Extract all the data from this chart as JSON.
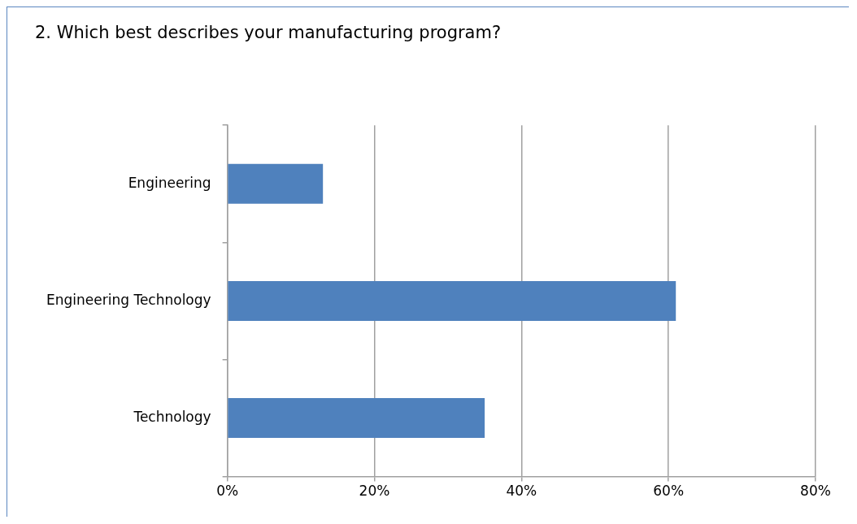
{
  "chart_data": {
    "type": "bar",
    "orientation": "horizontal",
    "title": "2. Which best describes your manufacturing program?",
    "categories": [
      "Engineering",
      "Engineering Technology",
      "Technology"
    ],
    "values": [
      13,
      61,
      35
    ],
    "color": "#4f81bd",
    "xlim": [
      0,
      80
    ],
    "xticks": [
      {
        "value": 0,
        "label": "0%"
      },
      {
        "value": 20,
        "label": "20%"
      },
      {
        "value": 40,
        "label": "40%"
      },
      {
        "value": 60,
        "label": "60%"
      },
      {
        "value": 80,
        "label": "80%"
      }
    ],
    "grid": "x",
    "legend": false
  }
}
